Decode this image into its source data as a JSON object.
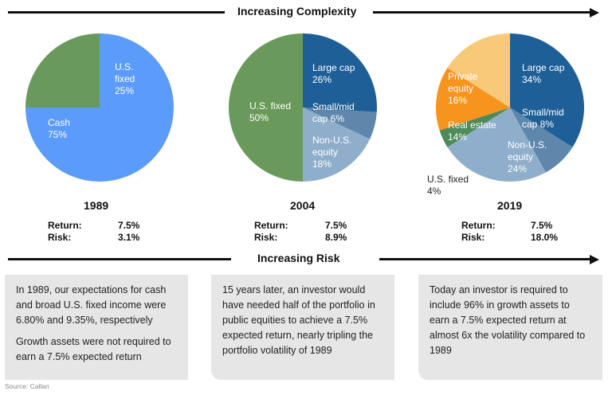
{
  "header": {
    "complexity_label": "Increasing Complexity",
    "risk_label": "Increasing Risk"
  },
  "chart_data": [
    {
      "type": "pie",
      "title": "1989",
      "slices": [
        {
          "name": "Cash",
          "value": 75,
          "label": "75%",
          "color": "#5b9bfa"
        },
        {
          "name": "U.S. fixed",
          "value": 25,
          "label": "25%",
          "color": "#6a9a5b"
        }
      ],
      "stats": {
        "return_label": "Return:",
        "return": "7.5%",
        "risk_label": "Risk:",
        "risk": "3.1%"
      }
    },
    {
      "type": "pie",
      "title": "2004",
      "slices": [
        {
          "name": "Large cap",
          "value": 26,
          "label": "26%",
          "color": "#1f5f97"
        },
        {
          "name": "Small/mid cap",
          "value": 6,
          "label": "6%",
          "color": "#5f87ab"
        },
        {
          "name": "Non-U.S. equity",
          "value": 18,
          "label": "18%",
          "color": "#8eaecb"
        },
        {
          "name": "U.S. fixed",
          "value": 50,
          "label": "50%",
          "color": "#6a9a5b"
        }
      ],
      "stats": {
        "return_label": "Return:",
        "return": "7.5%",
        "risk_label": "Risk:",
        "risk": "8.9%"
      }
    },
    {
      "type": "pie",
      "title": "2019",
      "slices": [
        {
          "name": "Large cap",
          "value": 34,
          "label": "34%",
          "color": "#1f5f97"
        },
        {
          "name": "Small/mid cap",
          "value": 8,
          "label": "8%",
          "color": "#5f87ab"
        },
        {
          "name": "Non-U.S. equity",
          "value": 24,
          "label": "24%",
          "color": "#8eaecb"
        },
        {
          "name": "U.S. fixed",
          "value": 4,
          "label": "4%",
          "color": "#4f8a5b"
        },
        {
          "name": "Real estate",
          "value": 14,
          "label": "14%",
          "color": "#f7941d"
        },
        {
          "name": "Private equity",
          "value": 16,
          "label": "16%",
          "color": "#f9c97a"
        }
      ],
      "stats": {
        "return_label": "Return:",
        "return": "7.5%",
        "risk_label": "Risk:",
        "risk": "18.0%"
      }
    }
  ],
  "slice_texts": {
    "p1": {
      "cash_name": "Cash",
      "cash_pct": "75%",
      "usf_l1": "U.S.",
      "usf_l2": "fixed",
      "usf_pct": "25%"
    },
    "p2": {
      "usf_name": "U.S. fixed",
      "usf_pct": "50%",
      "lc_name": "Large cap",
      "lc_pct": "26%",
      "sm_l1": "Small/mid",
      "sm_l2": "cap 6%",
      "nu_l1": "Non-U.S.",
      "nu_l2": "equity",
      "nu_pct": "18%"
    },
    "p3": {
      "pe_l1": "Private",
      "pe_l2": "equity",
      "pe_pct": "16%",
      "lc_name": "Large cap",
      "lc_pct": "34%",
      "sm_l1": "Small/mid",
      "sm_l2": "cap 8%",
      "re_name": "Real estate",
      "re_pct": "14%",
      "nu_l1": "Non-U.S.",
      "nu_l2": "equity",
      "nu_pct": "24%",
      "usf_name": "U.S. fixed",
      "usf_pct": "4%"
    }
  },
  "boxes": [
    {
      "p1": "In 1989, our expectations for cash and broad U.S. fixed income were 6.80% and 9.35%, respectively",
      "p2": "Growth assets were not required to earn a 7.5% expected return"
    },
    {
      "p1": "15 years later, an investor would have needed half of the portfolio in public equities to achieve a 7.5% expected return, nearly tripling the portfolio volatility of 1989"
    },
    {
      "p1": "Today an investor is required to include 96% in growth assets to earn a 7.5% expected return at almost 6x the volatility compared to 1989"
    }
  ],
  "source": "Source: Callan"
}
